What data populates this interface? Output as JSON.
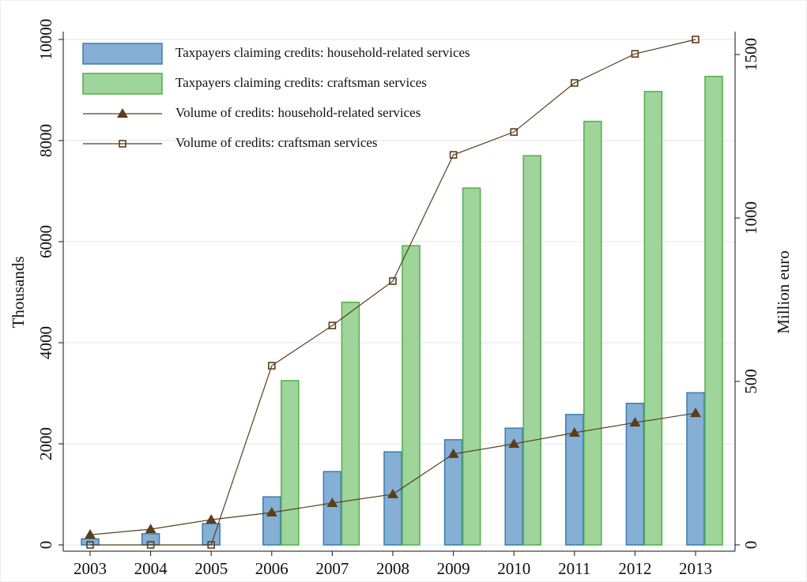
{
  "chart_data": {
    "type": "bar-line",
    "y_label": "Thousands",
    "y2_label": "Million euro",
    "categories": [
      "2003",
      "2004",
      "2005",
      "2006",
      "2007",
      "2008",
      "2009",
      "2010",
      "2011",
      "2012",
      "2013"
    ],
    "series": [
      {
        "name": "Taxpayers claiming credits: household-related services",
        "type": "bar",
        "color": "#86afd6",
        "edge": "#3a7bb0",
        "values": [
          120,
          220,
          420,
          950,
          1450,
          1840,
          2080,
          2310,
          2580,
          2800,
          3010
        ]
      },
      {
        "name": "Taxpayers claiming credits: craftsman services",
        "type": "bar",
        "color": "#9fd49a",
        "edge": "#4fb04a",
        "values": [
          null,
          null,
          null,
          3250,
          4800,
          5920,
          7060,
          7700,
          8380,
          8970,
          9270
        ]
      },
      {
        "name": "Volume of credits: household-related services",
        "type": "line",
        "marker": "triangle",
        "axis": "y2",
        "color": "#5a3e1b",
        "values": [
          31,
          48,
          77,
          99,
          128,
          155,
          278,
          309,
          343,
          374,
          403
        ]
      },
      {
        "name": "Volume of credits: craftsman services",
        "type": "line",
        "marker": "square",
        "axis": "y2",
        "color": "#5a3e1b",
        "values": [
          0,
          0,
          0,
          548,
          671,
          807,
          1193,
          1263,
          1413,
          1502,
          1546
        ]
      }
    ],
    "ylim": [
      0,
      10000
    ],
    "yticks": [
      0,
      2000,
      4000,
      6000,
      8000,
      10000
    ],
    "y2lim": [
      0,
      1546
    ],
    "y2ticks": [
      0,
      500,
      1000,
      1500
    ],
    "grid": true,
    "legend": "top-left"
  }
}
